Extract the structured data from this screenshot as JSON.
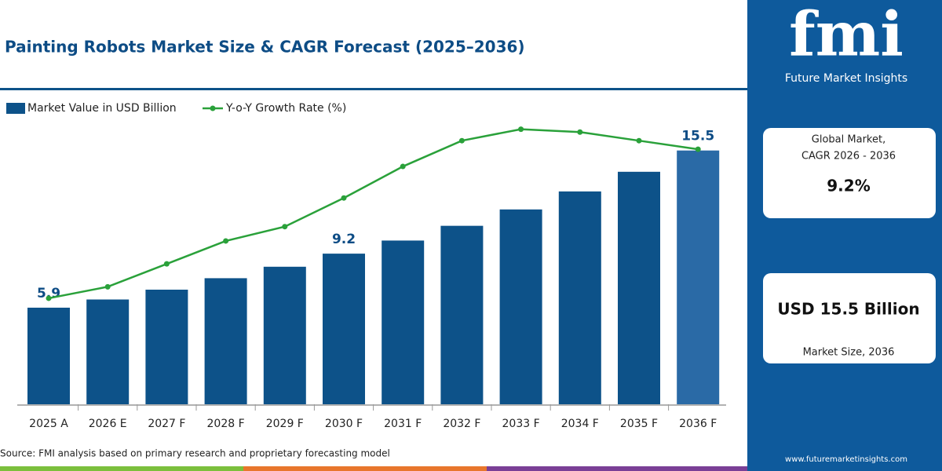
{
  "chart_data": {
    "type": "bar_line",
    "title": "Painting Robots Market Size & CAGR Forecast (2025–2036)",
    "categories": [
      "2025 A",
      "2026 E",
      "2027 F",
      "2028 F",
      "2029 F",
      "2030 F",
      "2031 F",
      "2032 F",
      "2033 F",
      "2034 F",
      "2035 F",
      "2036 F"
    ],
    "series": [
      {
        "name": "Market Value in USD Billion",
        "type": "bar",
        "color": "#0d5289",
        "colors": [
          "#0d5289",
          "#0d5289",
          "#0d5289",
          "#0d5289",
          "#0d5289",
          "#0d5289",
          "#0d5289",
          "#0d5289",
          "#0d5289",
          "#0d5289",
          "#0d5289",
          "#2a6aa6"
        ],
        "values": [
          5.9,
          6.4,
          7.0,
          7.7,
          8.4,
          9.2,
          10.0,
          10.9,
          11.9,
          13.0,
          14.2,
          15.5
        ],
        "value_labels": [
          "5.9",
          null,
          null,
          null,
          null,
          "9.2",
          null,
          null,
          null,
          null,
          null,
          "15.5"
        ]
      },
      {
        "name": "Y-o-Y Growth Rate (%)",
        "type": "line",
        "axis": "y2",
        "color": "#2aa13a",
        "values": [
          3.7,
          4.1,
          4.9,
          5.7,
          6.2,
          7.2,
          8.3,
          9.2,
          9.6,
          9.5,
          9.2,
          8.9
        ]
      }
    ],
    "ylim": [
      0,
      17.5
    ],
    "y2lim": [
      0,
      10
    ],
    "grid": false
  },
  "source": "Source: FMI analysis based on primary research and proprietary forecasting model",
  "panel": {
    "brand": "fmi",
    "brand_name": "Future Market Insights",
    "cards": [
      {
        "label_lines": [
          "Global Market,",
          "CAGR 2026 - 2036"
        ],
        "value": "9.2%"
      },
      {
        "value": "USD 15.5 Billion",
        "label": "Market Size, 2036"
      }
    ],
    "website": "www.futuremarketinsights.com"
  }
}
